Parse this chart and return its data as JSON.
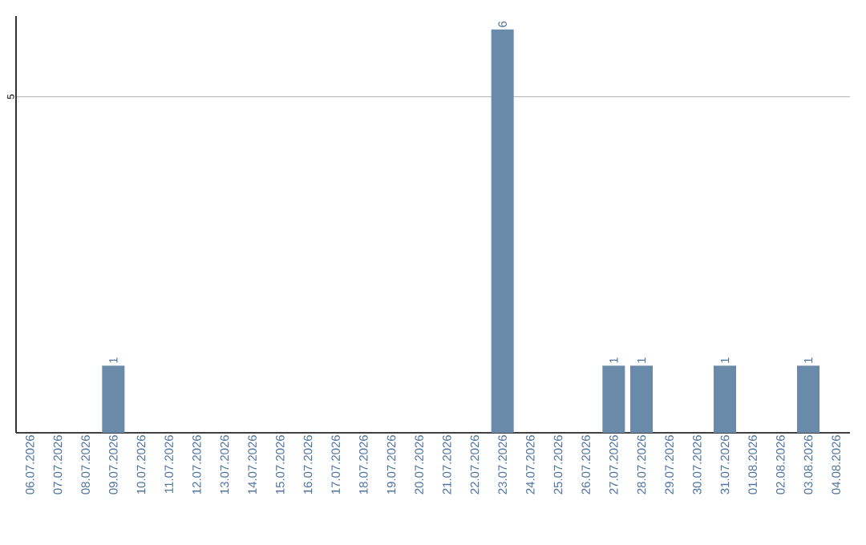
{
  "chart_data": {
    "type": "bar",
    "categories": [
      "06.07.2026",
      "07.07.2026",
      "08.07.2026",
      "09.07.2026",
      "10.07.2026",
      "11.07.2026",
      "12.07.2026",
      "13.07.2026",
      "14.07.2026",
      "15.07.2026",
      "16.07.2026",
      "17.07.2026",
      "18.07.2026",
      "19.07.2026",
      "20.07.2026",
      "21.07.2026",
      "22.07.2026",
      "23.07.2026",
      "24.07.2026",
      "25.07.2026",
      "26.07.2026",
      "27.07.2026",
      "28.07.2026",
      "29.07.2026",
      "30.07.2026",
      "31.07.2026",
      "01.08.2026",
      "02.08.2026",
      "03.08.2026",
      "04.08.2026"
    ],
    "values": [
      0,
      0,
      0,
      1,
      0,
      0,
      0,
      0,
      0,
      0,
      0,
      0,
      0,
      0,
      0,
      0,
      0,
      6,
      0,
      0,
      0,
      1,
      1,
      0,
      0,
      1,
      0,
      0,
      1,
      0
    ],
    "value_labels": [
      null,
      null,
      null,
      "1",
      null,
      null,
      null,
      null,
      null,
      null,
      null,
      null,
      null,
      null,
      null,
      null,
      null,
      "6",
      null,
      null,
      null,
      "1",
      "1",
      null,
      null,
      "1",
      null,
      null,
      "1",
      null
    ],
    "color": "#6a8aaa",
    "ylim": [
      0,
      6.2
    ],
    "yticks": [
      5
    ],
    "grid": "y"
  }
}
